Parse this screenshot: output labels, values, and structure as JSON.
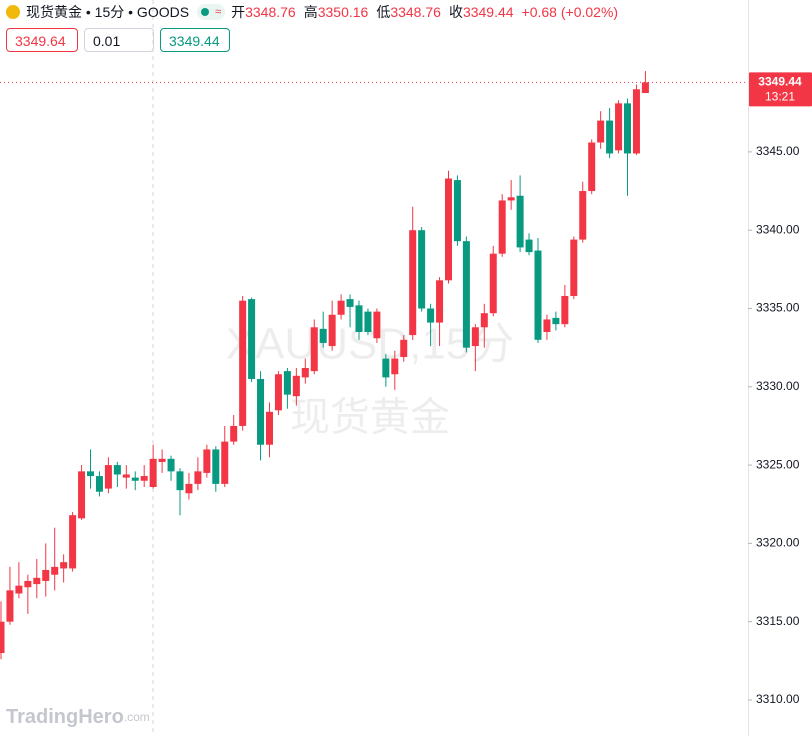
{
  "legend": {
    "title": "现货黄金 • 15分 • GOODS",
    "open_label": "开",
    "open": "3348.76",
    "high_label": "高",
    "high": "3350.16",
    "low_label": "低",
    "low": "3348.76",
    "close_label": "收",
    "close": "3349.44",
    "change": "+0.68 (+0.02%)",
    "icon": "≈"
  },
  "order_boxes": {
    "sell": "3349.64",
    "spread": "0.01",
    "buy": "3349.44"
  },
  "watermark": {
    "symbol": "XAUUSD,15分",
    "name": "现货黄金"
  },
  "logo": {
    "name": "TradingHero",
    "suffix": ".com"
  },
  "chart_data": {
    "type": "candlestick",
    "up_color": "#f23645",
    "down_color": "#089981",
    "open": [
      3313,
      3315,
      3316.8,
      3317.2,
      3317.4,
      3317.6,
      3318.0,
      3318.4,
      3318.4,
      3321.6,
      3324.6,
      3324.3,
      3323.5,
      3325,
      3324.2,
      3324.2,
      3324,
      3323.6,
      3325.2,
      3325.4,
      3324.6,
      3323.2,
      3323.8,
      3324.5,
      3326,
      3323.8,
      3326.5,
      3327.5,
      3335.6,
      3330.5,
      3326.3,
      3328.5,
      3331,
      3329.4,
      3330.6,
      3331,
      3333.7,
      3332.6,
      3334.6,
      3335.6,
      3335.2,
      3334.8,
      3333.1,
      3331.8,
      3330.8,
      3331.9,
      3333.3,
      3340,
      3335,
      3334.1,
      3336.8,
      3343.2,
      3339.3,
      3332.6,
      3333.8,
      3334.7,
      3338.5,
      3341.9,
      3342.2,
      3339.4,
      3338.7,
      3333.5,
      3334.4,
      3334,
      3335.8,
      3339.4,
      3342.5,
      3345.6,
      3347,
      3345.1,
      3348.1,
      3344.9,
      3348.76
    ],
    "high": [
      3316.3,
      3318.5,
      3318.8,
      3318,
      3319,
      3320,
      3321,
      3319.3,
      3322,
      3325,
      3326,
      3324.6,
      3325.5,
      3325.2,
      3325,
      3324.6,
      3325,
      3326.3,
      3326,
      3325.6,
      3324.8,
      3324.5,
      3325.5,
      3326.3,
      3326.2,
      3327.5,
      3328.2,
      3335.8,
      3335.7,
      3331,
      3329,
      3331,
      3331.2,
      3331.2,
      3331.8,
      3334.3,
      3334.8,
      3335.5,
      3335.9,
      3335.9,
      3335.5,
      3335,
      3335,
      3332.1,
      3332.3,
      3333.3,
      3341.5,
      3340.2,
      3335.3,
      3337,
      3343.8,
      3343.5,
      3339.6,
      3334,
      3335.3,
      3339,
      3342.3,
      3343.2,
      3343.5,
      3339.8,
      3339.5,
      3334.6,
      3334.8,
      3336.5,
      3339.6,
      3343.1,
      3345.8,
      3347.6,
      3347.8,
      3348.3,
      3348.4,
      3349.3,
      3350.16
    ],
    "low": [
      3312.6,
      3314.8,
      3316.5,
      3315.5,
      3316.5,
      3316.6,
      3317,
      3317.5,
      3318.2,
      3321.5,
      3323.5,
      3323,
      3323.2,
      3323.6,
      3323.5,
      3323.4,
      3323.6,
      3323.5,
      3324.5,
      3324,
      3321.8,
      3322.8,
      3323.4,
      3324.2,
      3323.3,
      3323.6,
      3326.3,
      3327.2,
      3330.3,
      3325.3,
      3325.5,
      3328.2,
      3328.6,
      3328.8,
      3330.2,
      3330.8,
      3332.5,
      3332.3,
      3334.3,
      3333.8,
      3333,
      3333.3,
      3332.8,
      3330,
      3329.8,
      3331.6,
      3333,
      3334.8,
      3332.6,
      3332.6,
      3336.6,
      3339,
      3332.2,
      3331,
      3332.5,
      3334.5,
      3338.3,
      3341.3,
      3338.6,
      3338.4,
      3332.8,
      3333,
      3333.6,
      3333.8,
      3335.6,
      3339.2,
      3342.3,
      3345.2,
      3344.6,
      3344.9,
      3342.2,
      3344.8,
      3348.76
    ],
    "close": [
      3315,
      3317,
      3317.3,
      3317.6,
      3317.8,
      3318.3,
      3318.5,
      3318.8,
      3321.8,
      3324.6,
      3324.3,
      3323.3,
      3325.0,
      3324.4,
      3324.4,
      3324,
      3324.3,
      3325.4,
      3325.4,
      3324.6,
      3323.4,
      3323.8,
      3324.6,
      3326,
      3323.8,
      3326.5,
      3327.5,
      3335.5,
      3330.5,
      3326.3,
      3328.4,
      3330.8,
      3329.5,
      3330.7,
      3331.2,
      3333.8,
      3332.8,
      3334.6,
      3335.5,
      3335.1,
      3333.5,
      3333.5,
      3334.8,
      3330.6,
      3331.8,
      3333,
      3340,
      3335,
      3334.1,
      3336.8,
      3343.3,
      3339.3,
      3332.5,
      3333.8,
      3334.7,
      3338.5,
      3341.9,
      3342.1,
      3338.9,
      3338.6,
      3333,
      3334.3,
      3334,
      3335.8,
      3339.4,
      3342.5,
      3345.6,
      3347,
      3344.9,
      3348.1,
      3344.9,
      3349.0,
      3349.44
    ],
    "ylim": [
      3307.7,
      3354.7
    ],
    "yticks": [
      {
        "value": 3310,
        "label": "3310.00"
      },
      {
        "value": 3315,
        "label": "3315.00"
      },
      {
        "value": 3320,
        "label": "3320.00"
      },
      {
        "value": 3325,
        "label": "3325.00"
      },
      {
        "value": 3330,
        "label": "3330.00"
      },
      {
        "value": 3335,
        "label": "3335.00"
      },
      {
        "value": 3340,
        "label": "3340.00"
      },
      {
        "value": 3345,
        "label": "3345.00"
      }
    ],
    "last_price": {
      "value": 3349.44,
      "time": "13:21"
    }
  }
}
